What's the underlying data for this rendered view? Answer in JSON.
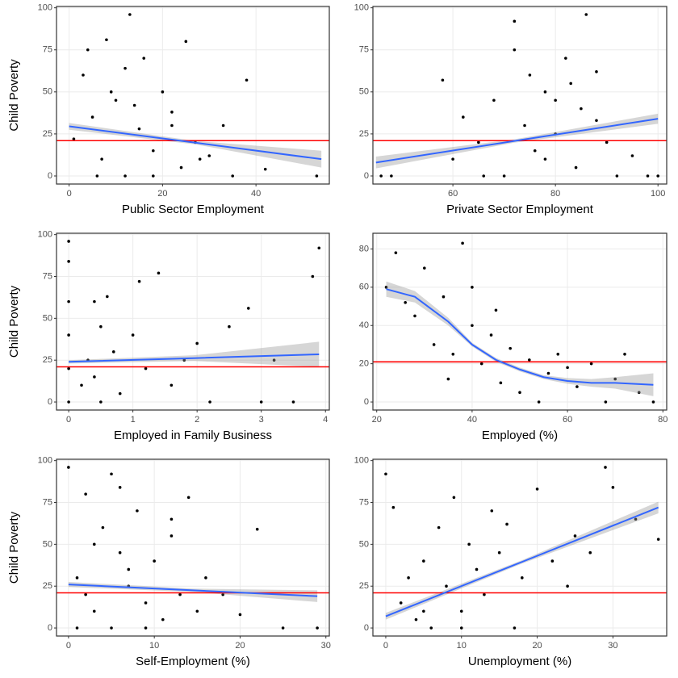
{
  "chart_data": [
    {
      "type": "scatter",
      "x_label": "Public Sector Employment",
      "y_label": "Child Poverty",
      "color": "#000000",
      "grid": true,
      "xlim": [
        -2.7,
        55.7
      ],
      "ylim": [
        -4.8,
        100.8
      ],
      "xticks": [
        0,
        20,
        40
      ],
      "yticks": [
        0,
        25,
        50,
        75,
        100
      ],
      "x": [
        1,
        3,
        5,
        7,
        8,
        10,
        12,
        13,
        15,
        16,
        18,
        20,
        22,
        24,
        25,
        27,
        30,
        33,
        35,
        38,
        42,
        12,
        6,
        9,
        18,
        22,
        28,
        4,
        14,
        53
      ],
      "y": [
        22,
        60,
        35,
        10,
        81,
        45,
        0,
        96,
        28,
        70,
        15,
        50,
        38,
        5,
        80,
        20,
        12,
        30,
        0,
        57,
        4,
        64,
        0,
        50,
        0,
        30,
        10,
        75,
        42,
        0
      ],
      "trend": {
        "color": "#3366ff",
        "x": [
          0,
          27,
          54
        ],
        "y": [
          29.5,
          19.8,
          10
        ],
        "lower": [
          27.5,
          18.8,
          5
        ],
        "upper": [
          31.5,
          20.8,
          15
        ]
      },
      "hline": {
        "value": 21,
        "color": "#ff0000"
      }
    },
    {
      "type": "scatter",
      "x_label": "Private Sector Employment",
      "color": "#000000",
      "grid": true,
      "xlim": [
        44.4,
        101.7
      ],
      "ylim": [
        -4.8,
        100.8
      ],
      "xticks": [
        60,
        80,
        100
      ],
      "yticks": [
        0,
        25,
        50,
        75,
        100
      ],
      "x": [
        46,
        48,
        58,
        60,
        62,
        65,
        68,
        70,
        72,
        74,
        75,
        76,
        78,
        80,
        82,
        84,
        85,
        86,
        88,
        90,
        92,
        95,
        98,
        100,
        72,
        80,
        88,
        66,
        83,
        78
      ],
      "y": [
        0,
        0,
        57,
        10,
        35,
        20,
        45,
        0,
        92,
        30,
        60,
        15,
        50,
        25,
        70,
        5,
        40,
        96,
        62,
        20,
        0,
        12,
        0,
        0,
        75,
        45,
        33,
        0,
        55,
        10
      ],
      "trend": {
        "color": "#3366ff",
        "x": [
          45,
          72,
          100
        ],
        "y": [
          8,
          20.8,
          34
        ],
        "lower": [
          4.5,
          19.8,
          31
        ],
        "upper": [
          11.5,
          21.8,
          37
        ]
      },
      "hline": {
        "value": 21,
        "color": "#ff0000"
      }
    },
    {
      "type": "scatter",
      "x_label": "Employed in Family Business",
      "y_label": "Child Poverty",
      "color": "#000000",
      "grid": true,
      "xlim": [
        -0.19,
        4.06
      ],
      "ylim": [
        -4.8,
        100.8
      ],
      "xticks": [
        0,
        1,
        2,
        3,
        4
      ],
      "yticks": [
        0,
        25,
        50,
        75,
        100
      ],
      "x": [
        0,
        0,
        0,
        0,
        0,
        0,
        0.2,
        0.3,
        0.4,
        0.5,
        0.5,
        0.6,
        0.7,
        0.8,
        1,
        1.1,
        1.2,
        1.4,
        1.6,
        1.8,
        2,
        2.2,
        2.5,
        2.8,
        3,
        3.2,
        3.5,
        3.8,
        3.9,
        0.4
      ],
      "y": [
        0,
        20,
        40,
        60,
        84,
        96,
        10,
        25,
        60,
        0,
        45,
        63,
        30,
        5,
        40,
        72,
        20,
        77,
        10,
        25,
        35,
        0,
        45,
        56,
        0,
        25,
        0,
        75,
        92,
        15
      ],
      "trend": {
        "color": "#3366ff",
        "x": [
          0,
          1.95,
          3.9
        ],
        "y": [
          24,
          26.2,
          28.5
        ],
        "lower": [
          23,
          24.5,
          21
        ],
        "upper": [
          25,
          27.9,
          36
        ]
      },
      "hline": {
        "value": 21,
        "color": "#ff0000"
      }
    },
    {
      "type": "scatter",
      "x_label": "Employed (%)",
      "color": "#000000",
      "grid": true,
      "xlim": [
        19.2,
        80.8
      ],
      "ylim": [
        -4.2,
        88.2
      ],
      "xticks": [
        20,
        40,
        60,
        80
      ],
      "yticks": [
        0,
        20,
        40,
        60,
        80
      ],
      "x": [
        22,
        24,
        26,
        28,
        30,
        32,
        34,
        36,
        38,
        40,
        42,
        44,
        46,
        48,
        50,
        52,
        54,
        56,
        58,
        60,
        62,
        65,
        68,
        70,
        72,
        75,
        78,
        40,
        45,
        35
      ],
      "y": [
        60,
        78,
        52,
        45,
        70,
        30,
        55,
        25,
        83,
        40,
        20,
        35,
        10,
        28,
        5,
        22,
        0,
        15,
        25,
        18,
        8,
        20,
        0,
        12,
        25,
        5,
        0,
        60,
        48,
        12
      ],
      "trend": {
        "color": "#3366ff",
        "x": [
          22,
          28,
          35,
          40,
          45,
          50,
          55,
          60,
          65,
          70,
          78
        ],
        "y": [
          59,
          55,
          42,
          30,
          22,
          17,
          13,
          11,
          10,
          10,
          9
        ],
        "lower": [
          55,
          52,
          40,
          29,
          21,
          16,
          12,
          9.5,
          8,
          7,
          3
        ],
        "upper": [
          63,
          58,
          44,
          31,
          23,
          18,
          14,
          12.5,
          12,
          13,
          15
        ]
      },
      "hline": {
        "value": 21,
        "color": "#ff0000"
      }
    },
    {
      "type": "scatter",
      "x_label": "Self-Employment (%)",
      "y_label": "Child Poverty",
      "color": "#000000",
      "grid": true,
      "xlim": [
        -1.4,
        30.4
      ],
      "ylim": [
        -4.8,
        100.8
      ],
      "xticks": [
        0,
        10,
        20,
        30
      ],
      "yticks": [
        0,
        25,
        50,
        75,
        100
      ],
      "x": [
        0,
        1,
        2,
        3,
        4,
        5,
        5,
        6,
        7,
        8,
        9,
        10,
        11,
        12,
        13,
        14,
        15,
        16,
        18,
        20,
        22,
        25,
        29,
        3,
        6,
        9,
        2,
        7,
        12,
        1
      ],
      "y": [
        96,
        30,
        80,
        10,
        60,
        92,
        0,
        45,
        25,
        70,
        15,
        40,
        5,
        55,
        20,
        78,
        10,
        30,
        20,
        8,
        59,
        0,
        0,
        50,
        84,
        0,
        20,
        35,
        65,
        0
      ],
      "trend": {
        "color": "#3366ff",
        "x": [
          0,
          14.5,
          29
        ],
        "y": [
          26,
          22.5,
          19
        ],
        "lower": [
          24.5,
          21.5,
          15.5
        ],
        "upper": [
          27.5,
          23.5,
          22.5
        ]
      },
      "hline": {
        "value": 21,
        "color": "#ff0000"
      }
    },
    {
      "type": "scatter",
      "x_label": "Unemployment (%)",
      "color": "#000000",
      "grid": true,
      "xlim": [
        -1.7,
        37.1
      ],
      "ylim": [
        -4.8,
        100.8
      ],
      "xticks": [
        0,
        10,
        20,
        30
      ],
      "yticks": [
        0,
        25,
        50,
        75,
        100
      ],
      "x": [
        0,
        1,
        2,
        3,
        4,
        5,
        6,
        7,
        8,
        9,
        10,
        11,
        12,
        13,
        14,
        15,
        16,
        18,
        20,
        22,
        24,
        25,
        27,
        29,
        30,
        33,
        36,
        5,
        10,
        17
      ],
      "y": [
        92,
        72,
        15,
        30,
        5,
        40,
        0,
        60,
        25,
        78,
        10,
        50,
        35,
        20,
        70,
        45,
        62,
        30,
        83,
        40,
        25,
        55,
        45,
        96,
        84,
        65,
        53,
        10,
        0,
        0
      ],
      "trend": {
        "color": "#3366ff",
        "x": [
          0,
          18,
          36
        ],
        "y": [
          7,
          39.5,
          72
        ],
        "lower": [
          5,
          38.5,
          68.5
        ],
        "upper": [
          9,
          40.5,
          75.5
        ]
      },
      "hline": {
        "value": 21,
        "color": "#ff0000"
      }
    }
  ]
}
